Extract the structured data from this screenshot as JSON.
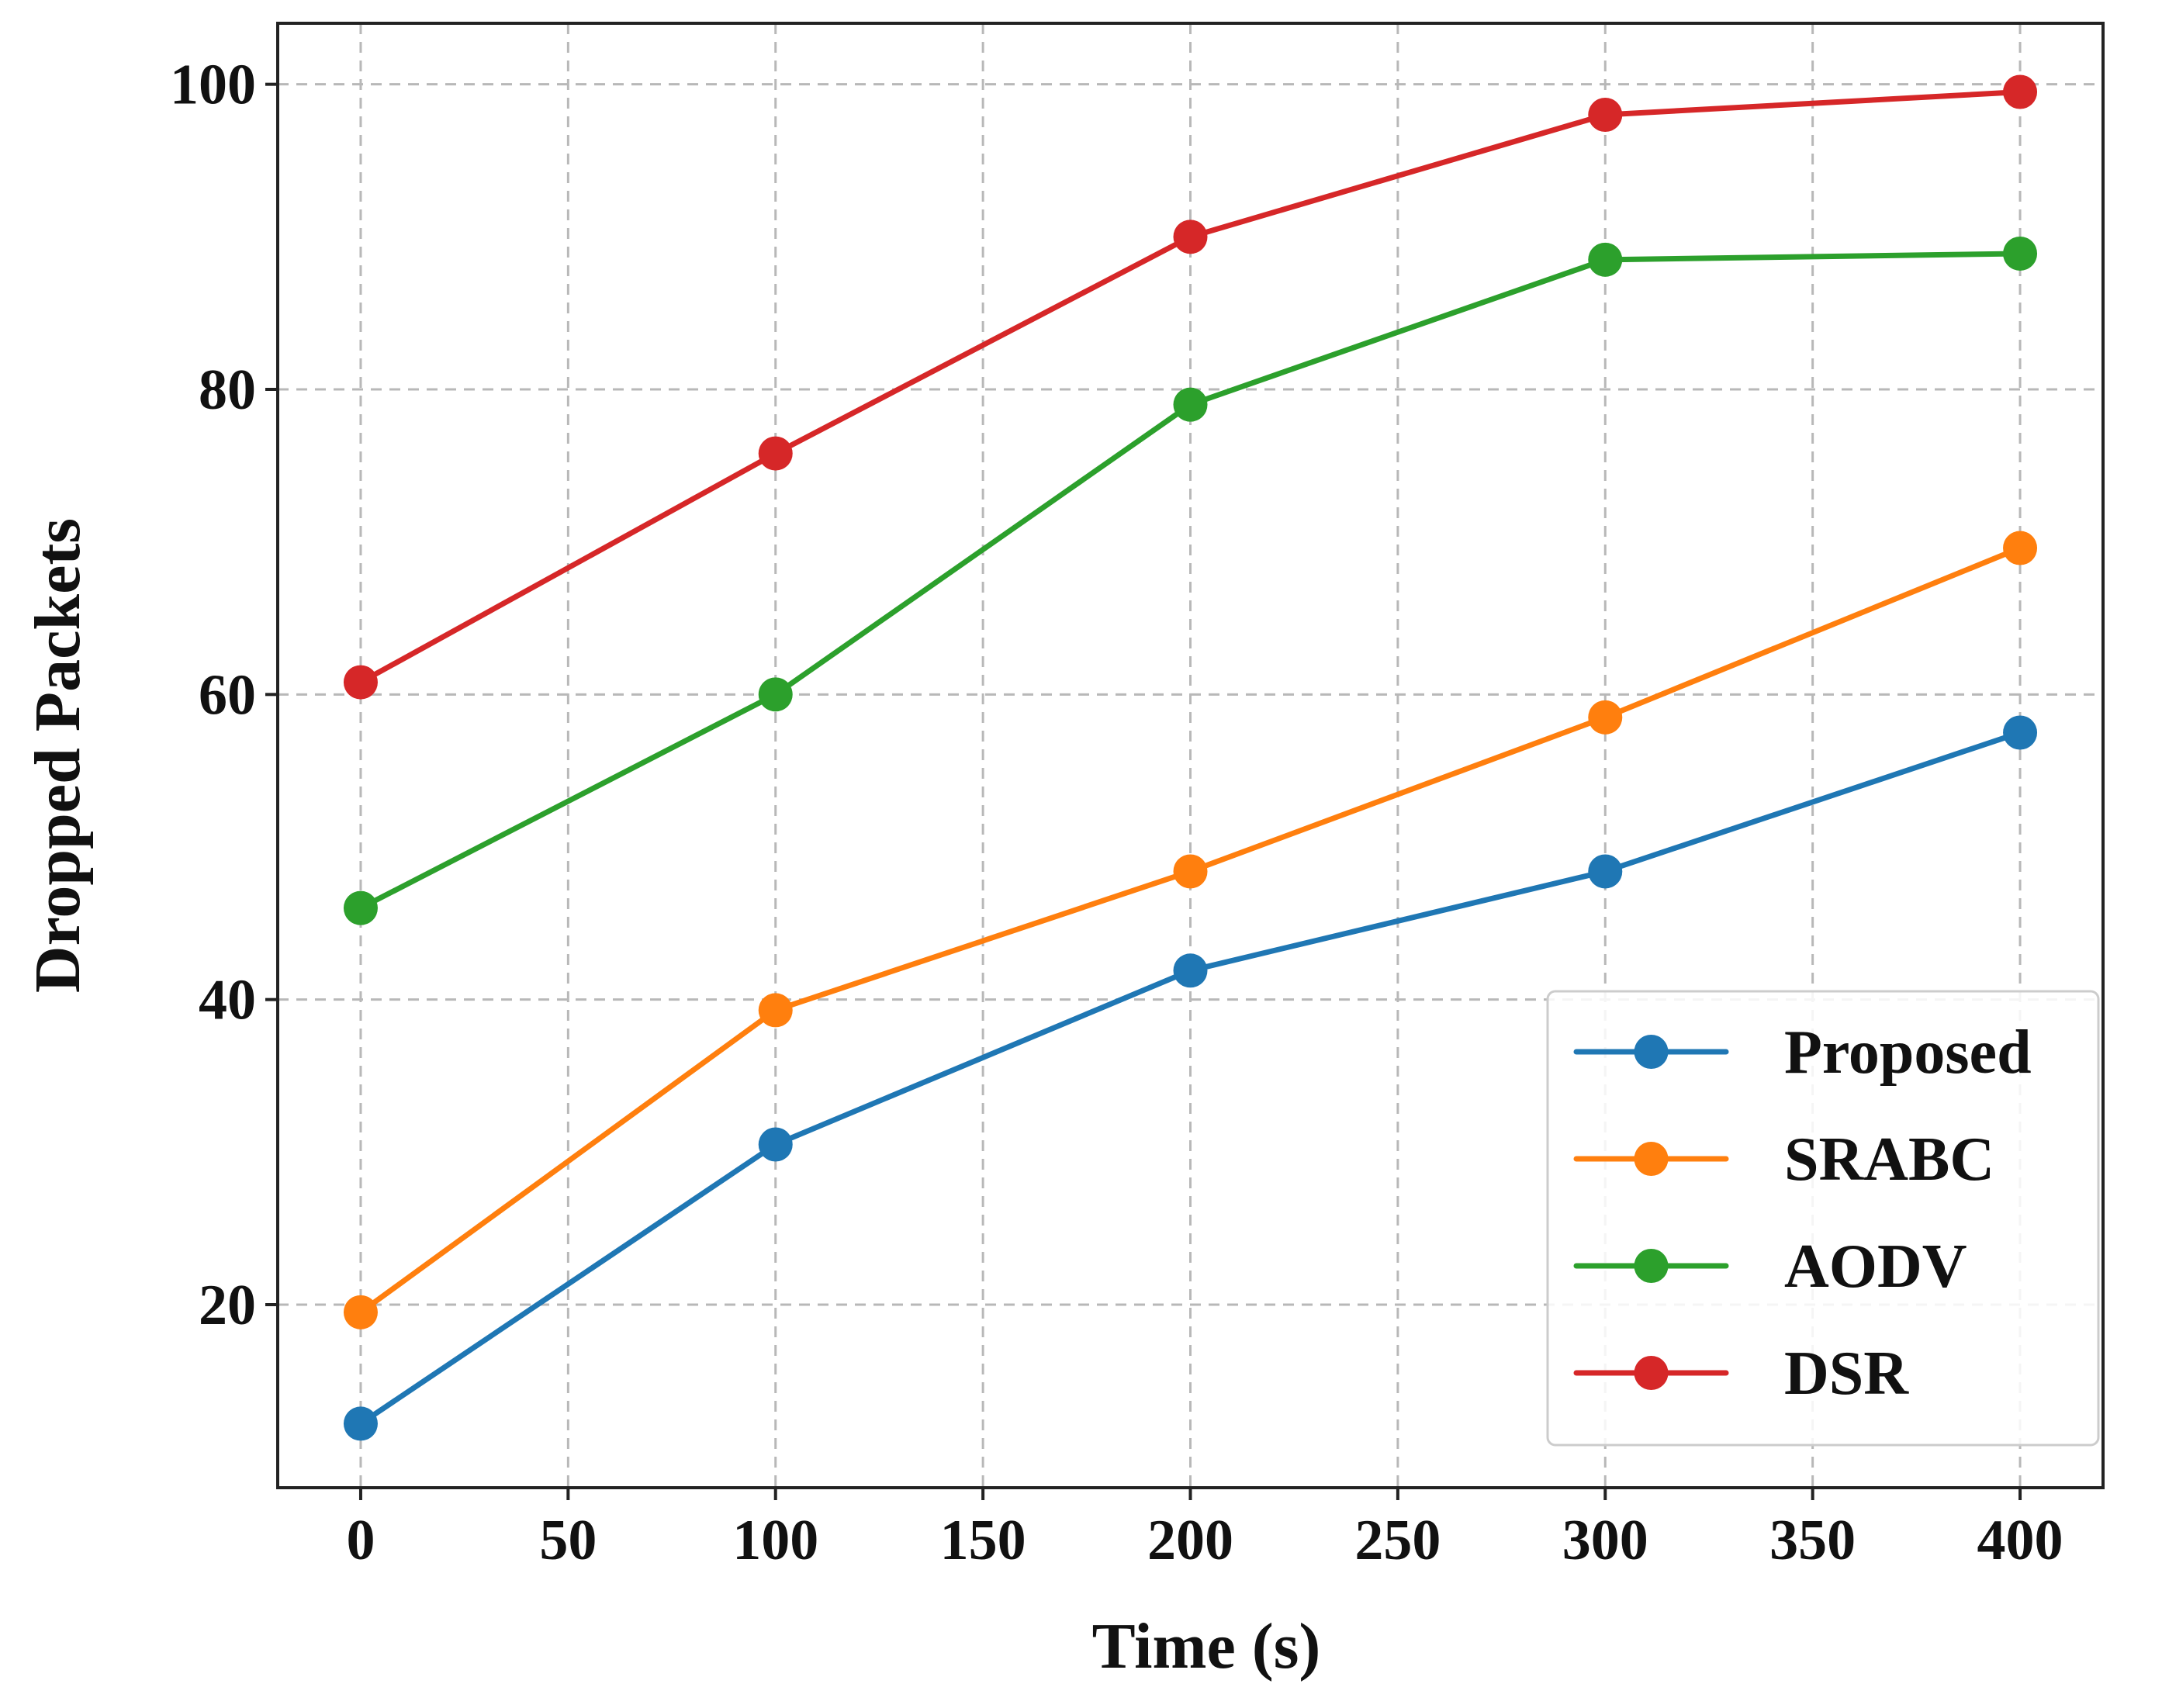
{
  "chart_data": {
    "type": "line",
    "title": "",
    "xlabel": "Time (s)",
    "ylabel": "Dropped Packets",
    "x": [
      0,
      100,
      200,
      300,
      400
    ],
    "xlim": [
      -20,
      420
    ],
    "ylim": [
      8,
      104
    ],
    "xticks": [
      0,
      50,
      100,
      150,
      200,
      250,
      300,
      350,
      400
    ],
    "yticks": [
      20,
      40,
      60,
      80,
      100
    ],
    "grid": true,
    "legend_position": "bottom-right",
    "series": [
      {
        "name": "Proposed",
        "color": "#1f77b4",
        "values": [
          12.2,
          30.5,
          41.9,
          48.4,
          57.5
        ]
      },
      {
        "name": "SRABC",
        "color": "#ff7f0e",
        "values": [
          19.5,
          39.3,
          48.4,
          58.5,
          69.6
        ]
      },
      {
        "name": "AODV",
        "color": "#2ca02c",
        "values": [
          46.0,
          60.0,
          79.0,
          88.5,
          88.9
        ]
      },
      {
        "name": "DSR",
        "color": "#d62728",
        "values": [
          60.8,
          75.8,
          90.0,
          98.0,
          99.5
        ]
      }
    ]
  }
}
